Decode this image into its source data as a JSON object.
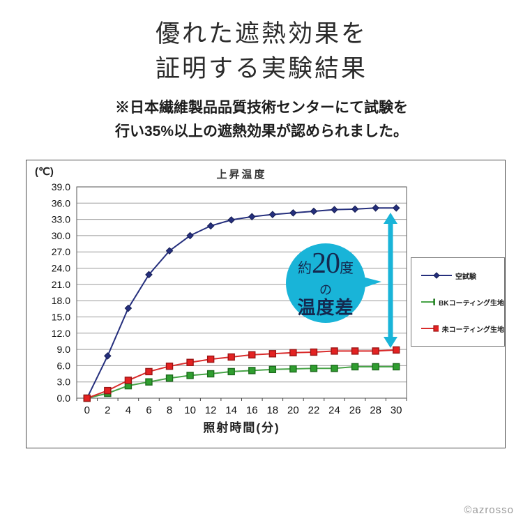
{
  "header": {
    "title_line1": "優れた遮熱効果を",
    "title_line2": "証明する実験結果",
    "note_line1": "※日本繊維製品品質技術センターにて試験を",
    "note_line2": "行い35%以上の遮熱効果が認められました。"
  },
  "chart_data": {
    "type": "line",
    "title": "上昇温度",
    "y_unit_label": "(℃)",
    "xlabel": "照射時間(分)",
    "x": [
      0,
      2,
      4,
      6,
      8,
      10,
      12,
      14,
      16,
      18,
      20,
      22,
      24,
      26,
      28,
      30
    ],
    "ylim": [
      0,
      39
    ],
    "ytick_step": 3,
    "ytick_labels": [
      "0.0",
      "3.0",
      "6.0",
      "9.0",
      "12.0",
      "15.0",
      "18.0",
      "21.0",
      "24.0",
      "27.0",
      "30.0",
      "33.0",
      "36.0",
      "39.0"
    ],
    "grid": true,
    "legend_position": "right",
    "series": [
      {
        "name": "空試験",
        "color": "#252f7d",
        "edge": "#141c52",
        "marker": "diamond",
        "values": [
          0.0,
          7.8,
          16.6,
          22.8,
          27.2,
          30.0,
          31.8,
          32.9,
          33.5,
          33.9,
          34.2,
          34.5,
          34.8,
          34.9,
          35.1,
          35.1
        ]
      },
      {
        "name": "BKコーティング生地",
        "color": "#46a346",
        "fill": "#2f9e2f",
        "edge": "#1c6b1c",
        "marker": "square",
        "values": [
          0.0,
          0.9,
          2.3,
          3.0,
          3.7,
          4.2,
          4.5,
          4.9,
          5.1,
          5.3,
          5.4,
          5.5,
          5.5,
          5.8,
          5.8,
          5.8
        ]
      },
      {
        "name": "未コーティング生地",
        "color": "#d92b2b",
        "fill": "#e32222",
        "edge": "#9b1414",
        "marker": "square",
        "values": [
          0.0,
          1.4,
          3.3,
          4.9,
          5.9,
          6.6,
          7.2,
          7.6,
          8.0,
          8.2,
          8.4,
          8.5,
          8.7,
          8.7,
          8.7,
          8.9
        ]
      }
    ]
  },
  "annotation": {
    "prefix": "約",
    "number": "20",
    "unit": "度",
    "particle": "の",
    "label": "温度差",
    "bubble_color": "#19b4d8",
    "arrow_color": "#19b4d8",
    "text_color": "#14294f"
  },
  "footer": {
    "watermark": "©azrosso"
  }
}
